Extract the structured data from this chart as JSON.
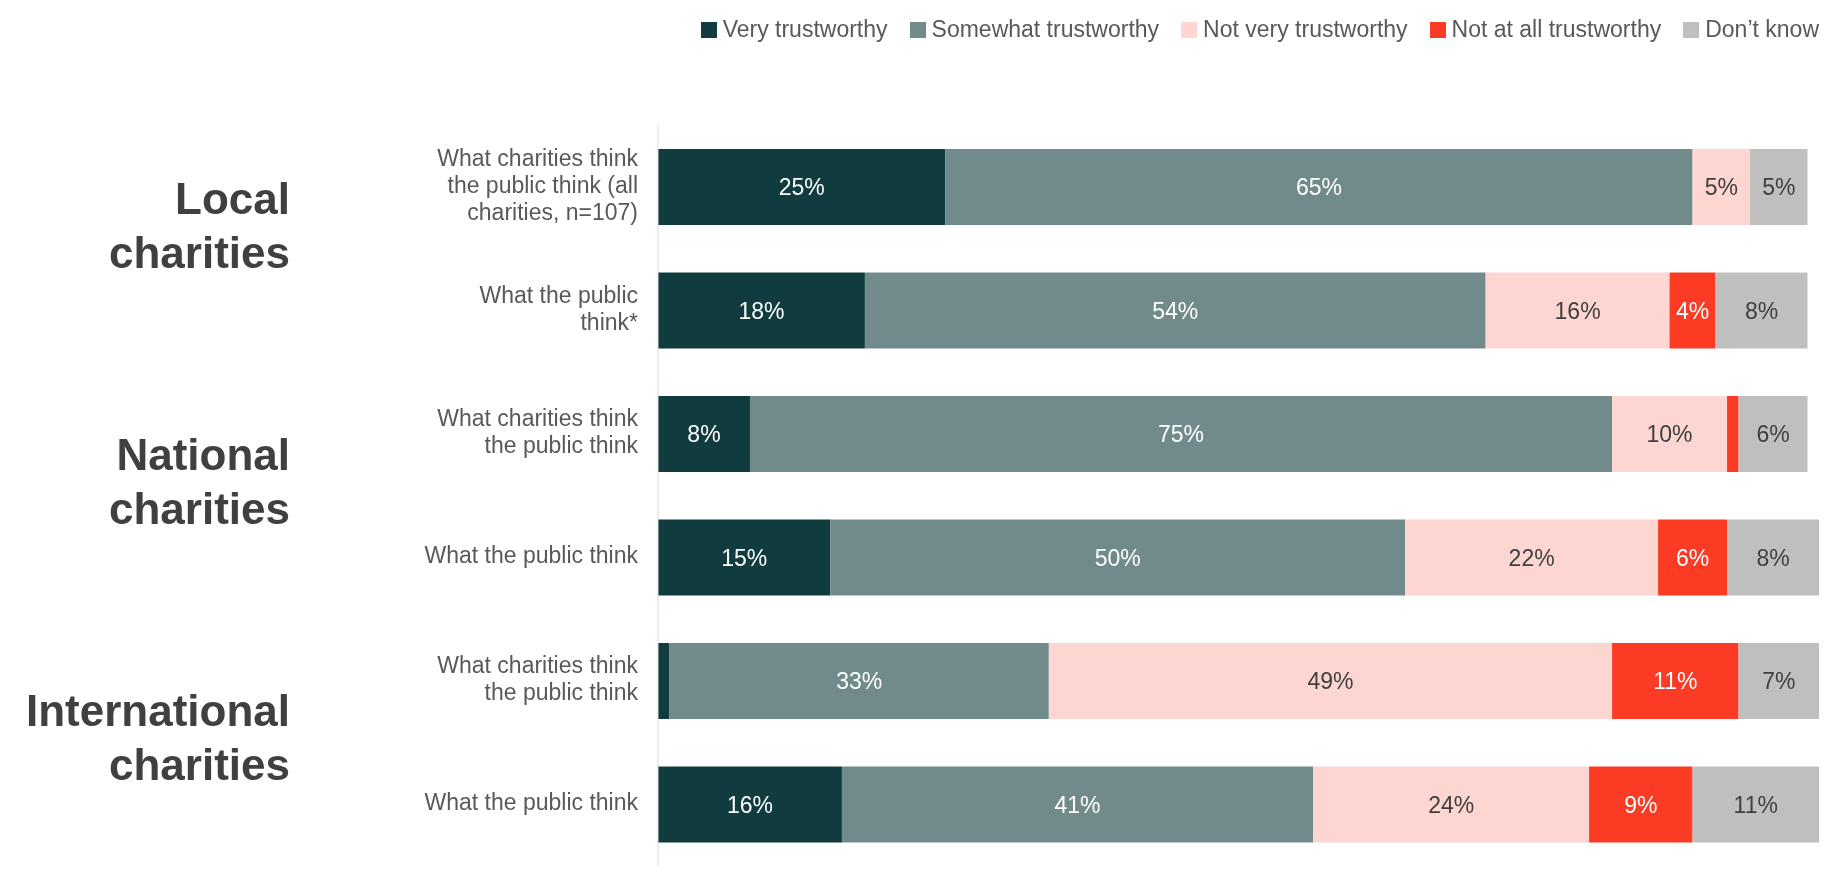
{
  "chart_data": {
    "type": "bar",
    "orientation": "horizontal",
    "stacked": true,
    "legend": "top right",
    "categories": [
      "What charities think the public think (all charities, n=107)",
      "What the public think*",
      "What charities think the public think",
      "What the public think",
      "What charities think the public think",
      "What the public think"
    ],
    "series": [
      {
        "name": "Very trustworthy",
        "color": "#113c3f",
        "values": [
          25,
          18,
          8,
          15,
          1,
          16
        ],
        "value_labels": [
          "25%",
          "18%",
          "8%",
          "15%",
          null,
          "16%"
        ]
      },
      {
        "name": "Somewhat trustworthy",
        "color": "#718b8c",
        "values": [
          65,
          54,
          75,
          50,
          33,
          41
        ],
        "value_labels": [
          "65%",
          "54%",
          "75%",
          "50%",
          "33%",
          "41%"
        ]
      },
      {
        "name": "Not very trustworthy",
        "color": "#fdd5d1",
        "values": [
          5,
          16,
          10,
          22,
          49,
          24
        ],
        "value_labels": [
          "5%",
          "16%",
          "10%",
          "22%",
          "49%",
          "24%"
        ]
      },
      {
        "name": "Not at all trustworthy",
        "color": "#fb3b24",
        "values": [
          null,
          4,
          1,
          6,
          11,
          9
        ],
        "value_labels": [
          null,
          "4%",
          null,
          "6%",
          "11%",
          "9%"
        ]
      },
      {
        "name": "Don’t know",
        "color": "#bfbfbf",
        "values": [
          5,
          8,
          6,
          8,
          7,
          11
        ],
        "value_labels": [
          "5%",
          "8%",
          "6%",
          "8%",
          "7%",
          "11%"
        ]
      }
    ],
    "annotations": [
      "Local charities",
      "National charities",
      "International charities"
    ]
  }
}
